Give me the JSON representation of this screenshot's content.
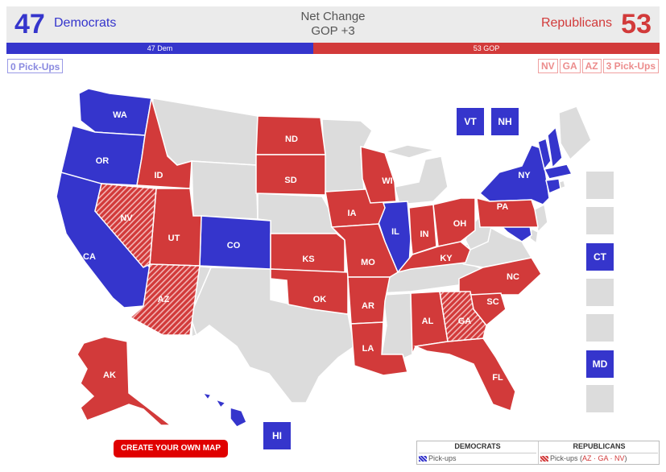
{
  "header": {
    "dem_count": "47",
    "dem_label": "Democrats",
    "net_title": "Net Change",
    "net_value": "GOP +3",
    "rep_label": "Republicans",
    "rep_count": "53"
  },
  "bar": {
    "dem_text": "47 Dem",
    "rep_text": "53 GOP",
    "dem_share": 0.47,
    "rep_share": 0.53
  },
  "pickups": {
    "dem_label": "0 Pick-Ups",
    "rep_states": [
      "NV",
      "GA",
      "AZ"
    ],
    "rep_label": "3 Pick-Ups"
  },
  "colors": {
    "dem": "#3535cc",
    "rep": "#d23a3a",
    "no_race": "#dcdcdc"
  },
  "map_labels": {
    "WA": "WA",
    "OR": "OR",
    "CA": "CA",
    "ID": "ID",
    "NV": "NV",
    "UT": "UT",
    "AZ": "AZ",
    "CO": "CO",
    "ND": "ND",
    "SD": "SD",
    "KS": "KS",
    "OK": "OK",
    "IA": "IA",
    "MO": "MO",
    "AR": "AR",
    "LA": "LA",
    "WI": "WI",
    "IL": "IL",
    "IN": "IN",
    "OH": "OH",
    "KY": "KY",
    "AL": "AL",
    "GA": "GA",
    "FL": "FL",
    "SC": "SC",
    "NC": "NC",
    "PA": "PA",
    "NY": "NY",
    "AK": "AK",
    "HI": "HI"
  },
  "small_states": {
    "vt": "VT",
    "nh": "NH",
    "ct": "CT",
    "md": "MD",
    "hi": "HI"
  },
  "cta_label": "CREATE YOUR OWN MAP",
  "legend": {
    "dem_header": "DEMOCRATS",
    "dem_row": "Pick-ups",
    "rep_header": "REPUBLICANS",
    "rep_row_prefix": "Pick-ups (",
    "rep_row_states": "AZ · GA · NV",
    "rep_row_suffix": ")"
  }
}
